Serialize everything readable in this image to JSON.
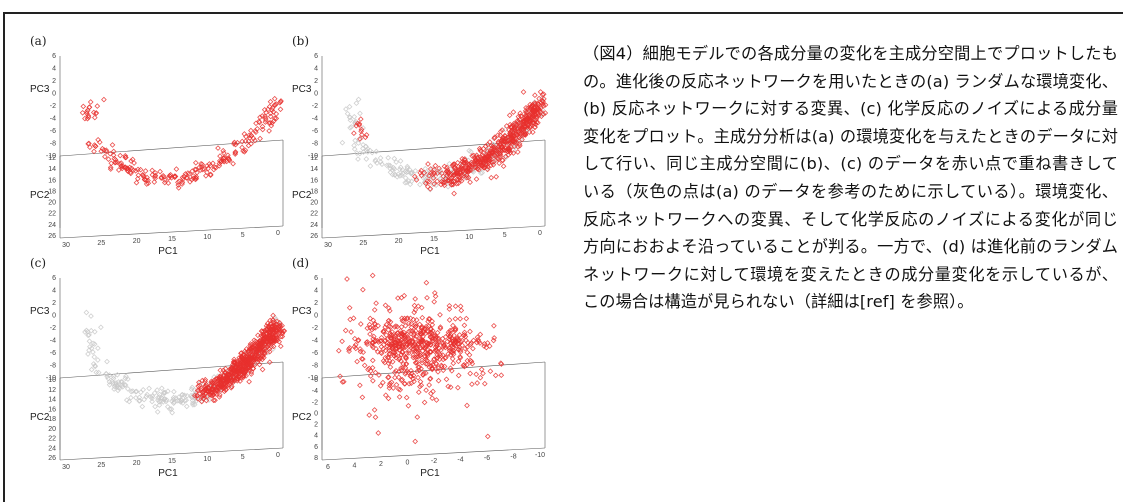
{
  "caption": "（図4）細胞モデルでの各成分量の変化を主成分空間上でプロットしたもの。進化後の反応ネットワークを用いたときの(a) ランダムな環境変化、(b) 反応ネットワークに対する変異、(c) 化学反応のノイズによる成分量変化をプロット。主成分分析は(a) の環境変化を与えたときのデータに対して行い、同じ主成分空間に(b)、(c) のデータを赤い点で重ね書きしている（灰色の点は(a) のデータを参考のために示している）。環境変化、反応ネットワークへの変異、そして化学反応のノイズによる変化が同じ方向におおよそ沿っていることが判る。一方で、(d) は進化前のランダムネットワークに対して環境を変えたときの成分量変化を示しているが、この場合は構造が見られない（詳細は[ref] を参照）。",
  "colors": {
    "red": "#e8302e",
    "gray": "#c8c8c8",
    "axis": "#555555"
  },
  "chart_data": [
    {
      "type": "scatter",
      "panel": "(a)",
      "xlabel": "PC1",
      "ylabel": "PC2",
      "zlabel": "PC3",
      "x_ticks": [
        "30",
        "25",
        "20",
        "15",
        "10",
        "5",
        "0"
      ],
      "y_ticks": [
        "12",
        "14",
        "16",
        "18",
        "20",
        "22",
        "24",
        "26"
      ],
      "z_ticks": [
        "6",
        "4",
        "2",
        "0",
        "-2",
        "-4",
        "-6",
        "-8",
        "-10"
      ],
      "series": [
        {
          "color": "red",
          "shape": "arc",
          "spread": "medium"
        }
      ]
    },
    {
      "type": "scatter",
      "panel": "(b)",
      "xlabel": "PC1",
      "ylabel": "PC2",
      "zlabel": "PC3",
      "x_ticks": [
        "30",
        "25",
        "20",
        "15",
        "10",
        "5",
        "0"
      ],
      "y_ticks": [
        "12",
        "14",
        "16",
        "18",
        "20",
        "22",
        "24",
        "26"
      ],
      "z_ticks": [
        "6",
        "4",
        "2",
        "0",
        "-2",
        "-4",
        "-6",
        "-8",
        "-10"
      ],
      "series": [
        {
          "color": "gray",
          "shape": "arc",
          "spread": "medium"
        },
        {
          "color": "red",
          "shape": "arc-right",
          "spread": "dense"
        }
      ]
    },
    {
      "type": "scatter",
      "panel": "(c)",
      "xlabel": "PC1",
      "ylabel": "PC2",
      "zlabel": "PC3",
      "x_ticks": [
        "30",
        "25",
        "20",
        "15",
        "10",
        "5",
        "0"
      ],
      "y_ticks": [
        "10",
        "12",
        "14",
        "16",
        "18",
        "20",
        "22",
        "24",
        "26"
      ],
      "z_ticks": [
        "6",
        "4",
        "2",
        "0",
        "-2",
        "-4",
        "-6",
        "-8",
        "-10"
      ],
      "series": [
        {
          "color": "gray",
          "shape": "arc",
          "spread": "medium"
        },
        {
          "color": "red",
          "shape": "cluster-right",
          "spread": "dense"
        }
      ]
    },
    {
      "type": "scatter",
      "panel": "(d)",
      "xlabel": "PC1",
      "ylabel": "PC2",
      "zlabel": "PC3",
      "x_ticks": [
        "6",
        "4",
        "2",
        "0",
        "-2",
        "-4",
        "-6",
        "-8",
        "-10"
      ],
      "y_ticks": [
        "-6",
        "-4",
        "-2",
        "0",
        "2",
        "4",
        "6",
        "8"
      ],
      "z_ticks": [
        "6",
        "4",
        "2",
        "0",
        "-2",
        "-4",
        "-6",
        "-8",
        "-10"
      ],
      "series": [
        {
          "color": "red",
          "shape": "blob",
          "spread": "wide"
        }
      ]
    }
  ]
}
